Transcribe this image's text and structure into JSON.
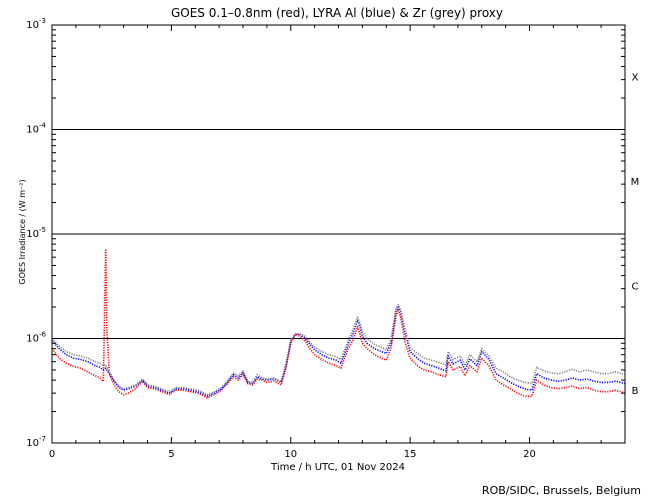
{
  "chart_data": {
    "type": "line",
    "title": "GOES 0.1–0.8nm (red), LYRA Al (blue) & Zr (grey) proxy",
    "xlabel": "Time / h UTC, 01 Nov 2024",
    "ylabel": "GOES Irradiance / (W m⁻²)",
    "xlim": [
      0,
      24
    ],
    "ylim": [
      1e-07,
      0.001
    ],
    "yscale": "log",
    "x_ticks": [
      0,
      5,
      10,
      15,
      20
    ],
    "y_tick_labels": [
      {
        "base": "10",
        "exp": "-3"
      },
      {
        "base": "10",
        "exp": "-4"
      },
      {
        "base": "10",
        "exp": "-5"
      },
      {
        "base": "10",
        "exp": "-6"
      },
      {
        "base": "10",
        "exp": "-7"
      }
    ],
    "flare_class_labels": [
      {
        "label": "X",
        "y": 0.00032
      },
      {
        "label": "M",
        "y": 3.2e-05
      },
      {
        "label": "C",
        "y": 3.2e-06
      },
      {
        "label": "B",
        "y": 3.2e-07
      }
    ],
    "reference_lines": [
      0.0001,
      1e-05,
      1e-06
    ],
    "series": [
      {
        "name": "GOES 0.1–0.8nm",
        "color": "#ff0000",
        "x": [
          0.0,
          0.3,
          0.6,
          0.9,
          1.2,
          1.5,
          1.8,
          2.0,
          2.15,
          2.25,
          2.3,
          2.4,
          2.6,
          2.8,
          3.0,
          3.2,
          3.5,
          3.8,
          4.0,
          4.3,
          4.6,
          4.9,
          5.0,
          5.2,
          5.5,
          5.8,
          6.1,
          6.4,
          6.5,
          6.8,
          7.1,
          7.3,
          7.6,
          7.8,
          8.0,
          8.2,
          8.4,
          8.6,
          8.8,
          9.0,
          9.3,
          9.6,
          9.8,
          10.0,
          10.2,
          10.4,
          10.6,
          10.8,
          11.0,
          11.3,
          11.6,
          11.9,
          12.1,
          12.4,
          12.6,
          12.8,
          12.9,
          13.0,
          13.2,
          13.5,
          13.8,
          14.0,
          14.2,
          14.4,
          14.5,
          14.6,
          14.8,
          15.0,
          15.2,
          15.4,
          15.6,
          15.9,
          16.2,
          16.5,
          16.6,
          16.8,
          17.1,
          17.3,
          17.5,
          17.8,
          18.0,
          18.3,
          18.6,
          18.9,
          19.2,
          19.5,
          19.8,
          20.1,
          20.3,
          20.6,
          20.9,
          21.2,
          21.5,
          21.8,
          22.1,
          22.4,
          22.7,
          23.0,
          23.3,
          23.6,
          24.0
        ],
        "y": [
          8e-07,
          6.5e-07,
          5.8e-07,
          5.4e-07,
          5.2e-07,
          4.8e-07,
          4.4e-07,
          4.2e-07,
          3.9e-07,
          7e-06,
          1.2e-06,
          4.6e-07,
          3.6e-07,
          3.1e-07,
          2.9e-07,
          3e-07,
          3.3e-07,
          3.9e-07,
          3.4e-07,
          3.3e-07,
          3.1e-07,
          2.9e-07,
          3e-07,
          3.2e-07,
          3.2e-07,
          3.1e-07,
          3e-07,
          2.8e-07,
          2.7e-07,
          2.9e-07,
          3.2e-07,
          3.6e-07,
          4.3e-07,
          4e-07,
          4.5e-07,
          3.7e-07,
          3.6e-07,
          4.1e-07,
          4e-07,
          3.8e-07,
          3.9e-07,
          3.6e-07,
          5.2e-07,
          9e-07,
          1.1e-06,
          1.05e-06,
          9.5e-07,
          8e-07,
          7e-07,
          6.3e-07,
          5.8e-07,
          5.5e-07,
          5.2e-07,
          8e-07,
          9.5e-07,
          1.3e-06,
          1.1e-06,
          9e-07,
          8e-07,
          7e-07,
          6.5e-07,
          6.2e-07,
          8e-07,
          1.6e-06,
          1.9e-06,
          1.6e-06,
          9e-07,
          6.5e-07,
          5.8e-07,
          5.3e-07,
          5e-07,
          4.8e-07,
          4.5e-07,
          4.3e-07,
          6e-07,
          5e-07,
          5.4e-07,
          4.4e-07,
          5.5e-07,
          4.8e-07,
          6.5e-07,
          5.5e-07,
          4e-07,
          3.6e-07,
          3.3e-07,
          3e-07,
          2.8e-07,
          2.8e-07,
          4e-07,
          3.6e-07,
          3.4e-07,
          3.3e-07,
          3.4e-07,
          3.5e-07,
          3.3e-07,
          3.4e-07,
          3.2e-07,
          3.1e-07,
          3.1e-07,
          3.2e-07,
          3e-07
        ]
      },
      {
        "name": "LYRA Al",
        "color": "#0000ff",
        "x": [
          0.0,
          0.3,
          0.6,
          0.9,
          1.2,
          1.5,
          1.8,
          2.0,
          2.15,
          2.25,
          2.4,
          2.6,
          2.8,
          3.0,
          3.2,
          3.5,
          3.8,
          4.0,
          4.3,
          4.6,
          4.9,
          5.0,
          5.2,
          5.5,
          5.8,
          6.1,
          6.4,
          6.5,
          6.8,
          7.1,
          7.3,
          7.6,
          7.8,
          8.0,
          8.2,
          8.4,
          8.6,
          8.8,
          9.0,
          9.3,
          9.6,
          9.8,
          10.0,
          10.2,
          10.4,
          10.6,
          10.8,
          11.0,
          11.3,
          11.6,
          11.9,
          12.1,
          12.4,
          12.6,
          12.8,
          12.9,
          13.0,
          13.2,
          13.5,
          13.8,
          14.0,
          14.2,
          14.4,
          14.5,
          14.6,
          14.8,
          15.0,
          15.2,
          15.4,
          15.6,
          15.9,
          16.2,
          16.5,
          16.6,
          16.8,
          17.1,
          17.3,
          17.5,
          17.8,
          18.0,
          18.3,
          18.6,
          18.9,
          19.2,
          19.5,
          19.8,
          20.1,
          20.3,
          20.6,
          20.9,
          21.2,
          21.5,
          21.8,
          22.1,
          22.4,
          22.7,
          23.0,
          23.3,
          23.6,
          24.0
        ],
        "y": [
          9.5e-07,
          8e-07,
          7e-07,
          6.5e-07,
          6.3e-07,
          6e-07,
          5.5e-07,
          5.3e-07,
          5e-07,
          5.2e-07,
          4.6e-07,
          3.9e-07,
          3.4e-07,
          3.2e-07,
          3.3e-07,
          3.5e-07,
          4e-07,
          3.5e-07,
          3.4e-07,
          3.2e-07,
          3e-07,
          3.1e-07,
          3.3e-07,
          3.3e-07,
          3.2e-07,
          3.1e-07,
          2.9e-07,
          2.8e-07,
          3e-07,
          3.3e-07,
          3.7e-07,
          4.5e-07,
          4.2e-07,
          4.7e-07,
          3.8e-07,
          3.7e-07,
          4.3e-07,
          4.1e-07,
          4e-07,
          4.1e-07,
          3.8e-07,
          5.5e-07,
          9.5e-07,
          1.1e-06,
          1.1e-06,
          1e-06,
          8.8e-07,
          7.8e-07,
          7e-07,
          6.5e-07,
          6.2e-07,
          5.8e-07,
          8.8e-07,
          1.1e-06,
          1.5e-06,
          1.3e-06,
          1.05e-06,
          9e-07,
          8e-07,
          7.5e-07,
          7.2e-07,
          9e-07,
          1.8e-06,
          2e-06,
          1.8e-06,
          1.1e-06,
          7.5e-07,
          6.8e-07,
          6.2e-07,
          5.8e-07,
          5.5e-07,
          5.2e-07,
          4.9e-07,
          6.8e-07,
          5.7e-07,
          6.2e-07,
          5e-07,
          6.4e-07,
          5.5e-07,
          7.5e-07,
          6.3e-07,
          4.6e-07,
          4.2e-07,
          3.8e-07,
          3.5e-07,
          3.3e-07,
          3.2e-07,
          4.6e-07,
          4.2e-07,
          4e-07,
          3.9e-07,
          4e-07,
          4.2e-07,
          4e-07,
          4.1e-07,
          3.9e-07,
          3.8e-07,
          3.8e-07,
          3.9e-07,
          3.7e-07
        ]
      },
      {
        "name": "LYRA Zr",
        "color": "#808080",
        "x": [
          0.0,
          0.3,
          0.6,
          0.9,
          1.2,
          1.5,
          1.8,
          2.0,
          2.15,
          2.25,
          2.4,
          2.6,
          2.8,
          3.0,
          3.2,
          3.5,
          3.8,
          4.0,
          4.3,
          4.6,
          4.9,
          5.0,
          5.2,
          5.5,
          5.8,
          6.1,
          6.4,
          6.5,
          6.8,
          7.1,
          7.3,
          7.6,
          7.8,
          8.0,
          8.2,
          8.4,
          8.6,
          8.8,
          9.0,
          9.3,
          9.6,
          9.8,
          10.0,
          10.2,
          10.4,
          10.6,
          10.8,
          11.0,
          11.3,
          11.6,
          11.9,
          12.1,
          12.4,
          12.6,
          12.8,
          12.9,
          13.0,
          13.2,
          13.5,
          13.8,
          14.0,
          14.2,
          14.4,
          14.5,
          14.6,
          14.8,
          15.0,
          15.2,
          15.4,
          15.6,
          15.9,
          16.2,
          16.5,
          16.6,
          16.8,
          17.1,
          17.3,
          17.5,
          17.8,
          18.0,
          18.3,
          18.6,
          18.9,
          19.2,
          19.5,
          19.8,
          20.1,
          20.3,
          20.6,
          20.9,
          21.2,
          21.5,
          21.8,
          22.1,
          22.4,
          22.7,
          23.0,
          23.3,
          23.6,
          24.0
        ],
        "y": [
          1e-06,
          8.5e-07,
          7.5e-07,
          7e-07,
          6.8e-07,
          6.5e-07,
          6e-07,
          5.8e-07,
          5.5e-07,
          5.6e-07,
          4.8e-07,
          4e-07,
          3.5e-07,
          3.3e-07,
          3.4e-07,
          3.6e-07,
          4.1e-07,
          3.6e-07,
          3.5e-07,
          3.3e-07,
          3.1e-07,
          3.2e-07,
          3.4e-07,
          3.4e-07,
          3.3e-07,
          3.2e-07,
          3e-07,
          2.9e-07,
          3.1e-07,
          3.4e-07,
          3.8e-07,
          4.7e-07,
          4.4e-07,
          4.9e-07,
          3.9e-07,
          3.8e-07,
          4.5e-07,
          4.2e-07,
          4.1e-07,
          4.2e-07,
          3.9e-07,
          5.7e-07,
          9.5e-07,
          1.1e-06,
          1.1e-06,
          1.05e-06,
          9.2e-07,
          8.3e-07,
          7.5e-07,
          7e-07,
          6.7e-07,
          6.3e-07,
          9.5e-07,
          1.2e-06,
          1.6e-06,
          1.4e-06,
          1.15e-06,
          1e-06,
          8.8e-07,
          8.2e-07,
          7.8e-07,
          9.8e-07,
          1.9e-06,
          2.1e-06,
          1.9e-06,
          1.2e-06,
          8.2e-07,
          7.5e-07,
          7e-07,
          6.5e-07,
          6.2e-07,
          5.9e-07,
          5.6e-07,
          7.5e-07,
          6.3e-07,
          6.8e-07,
          5.5e-07,
          7e-07,
          6e-07,
          8e-07,
          6.8e-07,
          5.2e-07,
          4.8e-07,
          4.3e-07,
          4e-07,
          3.8e-07,
          3.7e-07,
          5.3e-07,
          4.9e-07,
          4.7e-07,
          4.6e-07,
          4.8e-07,
          5.1e-07,
          4.8e-07,
          5e-07,
          4.8e-07,
          4.6e-07,
          4.6e-07,
          4.8e-07,
          4.5e-07
        ]
      }
    ],
    "credit": "ROB/SIDC, Brussels, Belgium"
  }
}
